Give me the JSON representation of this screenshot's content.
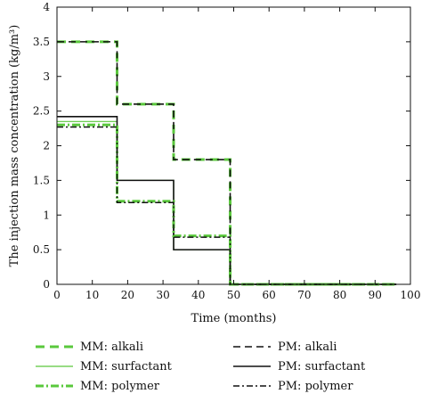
{
  "chart_data": {
    "type": "line",
    "title": "",
    "xlabel": "Time (months)",
    "ylabel": "The injection mass concentration (kg/m³)",
    "xlim": [
      0,
      100
    ],
    "ylim": [
      0,
      4
    ],
    "xticks": [
      0,
      10,
      20,
      30,
      40,
      50,
      60,
      70,
      80,
      90,
      100
    ],
    "yticks": [
      0,
      0.5,
      1,
      1.5,
      2,
      2.5,
      3,
      3.5,
      4
    ],
    "grid": false,
    "legend_position": "bottom",
    "series": [
      {
        "name": "MM: alkali",
        "color": "#5ac83c",
        "dash": "10,6",
        "width": 3,
        "x": [
          0,
          17,
          17,
          33,
          33,
          49,
          49,
          96
        ],
        "y": [
          3.5,
          3.5,
          2.6,
          2.6,
          1.8,
          1.8,
          0,
          0
        ]
      },
      {
        "name": "PM: alkali",
        "color": "#111111",
        "dash": "8,5",
        "width": 1.6,
        "x": [
          0,
          17,
          17,
          33,
          33,
          49,
          49,
          96
        ],
        "y": [
          3.5,
          3.5,
          2.6,
          2.6,
          1.8,
          1.8,
          0,
          0
        ]
      },
      {
        "name": "MM: surfactant",
        "color": "#5ac83c",
        "dash": "",
        "width": 1.2,
        "x": [
          0,
          17,
          17,
          33,
          33,
          49,
          49,
          96
        ],
        "y": [
          2.35,
          2.35,
          1.5,
          1.5,
          0.5,
          0.5,
          0,
          0
        ]
      },
      {
        "name": "PM: surfactant",
        "color": "#111111",
        "dash": "",
        "width": 1.6,
        "x": [
          0,
          17,
          17,
          33,
          33,
          49,
          49,
          96
        ],
        "y": [
          2.42,
          2.42,
          1.5,
          1.5,
          0.5,
          0.5,
          0,
          0
        ]
      },
      {
        "name": "MM: polymer",
        "color": "#5ac83c",
        "dash": "9,3,2,3",
        "width": 3,
        "x": [
          0,
          17,
          17,
          33,
          33,
          49,
          49,
          96
        ],
        "y": [
          2.3,
          2.3,
          1.2,
          1.2,
          0.7,
          0.7,
          0,
          0
        ]
      },
      {
        "name": "PM: polymer",
        "color": "#111111",
        "dash": "7,3,2,3",
        "width": 1.4,
        "x": [
          0,
          17,
          17,
          33,
          33,
          49,
          49,
          96
        ],
        "y": [
          2.27,
          2.27,
          1.18,
          1.18,
          0.68,
          0.68,
          0,
          0
        ]
      }
    ],
    "legend_order": [
      0,
      1,
      2,
      3,
      4,
      5
    ]
  }
}
